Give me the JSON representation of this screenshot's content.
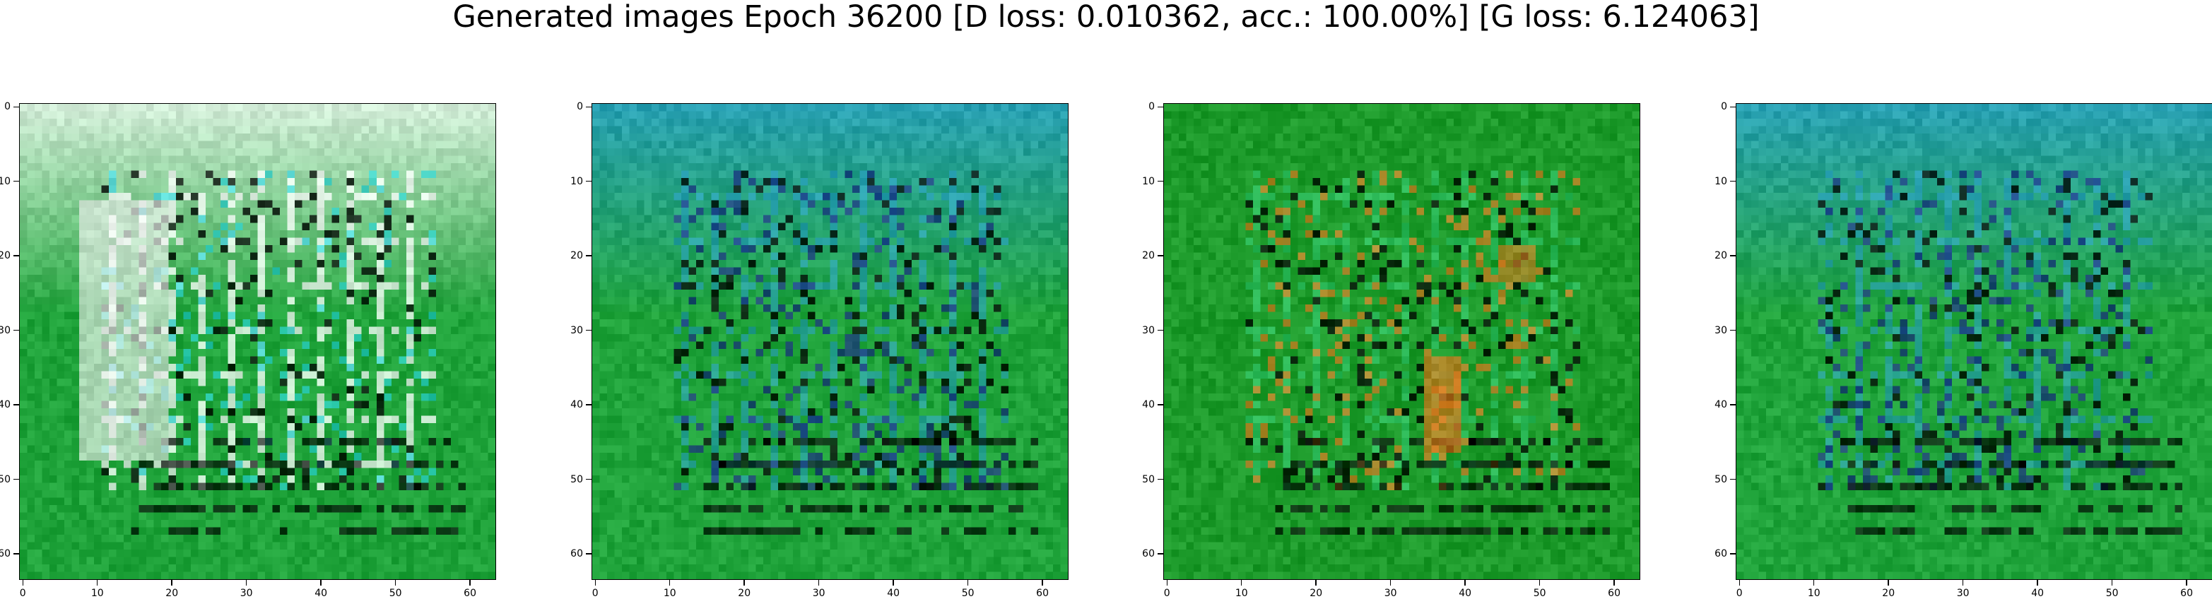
{
  "figure": {
    "title": "Generated images Epoch 36200 [D loss: 0.010362, acc.: 100.00%] [G loss: 6.124063]"
  },
  "chart_data": [
    {
      "type": "heatmap",
      "title": "",
      "xlabel": "",
      "ylabel": "",
      "xlim": [
        -0.5,
        63.5
      ],
      "ylim": [
        63.5,
        -0.5
      ],
      "xticks": [
        0,
        10,
        20,
        30,
        40,
        50,
        60
      ],
      "yticks": [
        0,
        10,
        20,
        30,
        40,
        50,
        60
      ],
      "dominant_colors": [
        "#1fa33a",
        "#ffffff",
        "#26d0d0"
      ],
      "grid": false
    },
    {
      "type": "heatmap",
      "title": "",
      "xlabel": "",
      "ylabel": "",
      "xlim": [
        -0.5,
        63.5
      ],
      "ylim": [
        63.5,
        -0.5
      ],
      "xticks": [
        0,
        10,
        20,
        30,
        40,
        50,
        60
      ],
      "yticks": [
        0,
        10,
        20,
        30,
        40,
        50,
        60
      ],
      "dominant_colors": [
        "#1fa33a",
        "#2a9fd0",
        "#1a2a80"
      ],
      "grid": false
    },
    {
      "type": "heatmap",
      "title": "",
      "xlabel": "",
      "ylabel": "",
      "xlim": [
        -0.5,
        63.5
      ],
      "ylim": [
        63.5,
        -0.5
      ],
      "xticks": [
        0,
        10,
        20,
        30,
        40,
        50,
        60
      ],
      "yticks": [
        0,
        10,
        20,
        30,
        40,
        50,
        60
      ],
      "dominant_colors": [
        "#1c9a2a",
        "#36d07a",
        "#e07a20"
      ],
      "grid": false
    },
    {
      "type": "heatmap",
      "title": "",
      "xlabel": "",
      "ylabel": "",
      "xlim": [
        -0.5,
        63.5
      ],
      "ylim": [
        63.5,
        -0.5
      ],
      "xticks": [
        0,
        10,
        20,
        30,
        40,
        50,
        60
      ],
      "yticks": [
        0,
        10,
        20,
        30,
        40,
        50,
        60
      ],
      "dominant_colors": [
        "#1fa33a",
        "#2a9fd0",
        "#1a2a80"
      ],
      "grid": false
    }
  ]
}
